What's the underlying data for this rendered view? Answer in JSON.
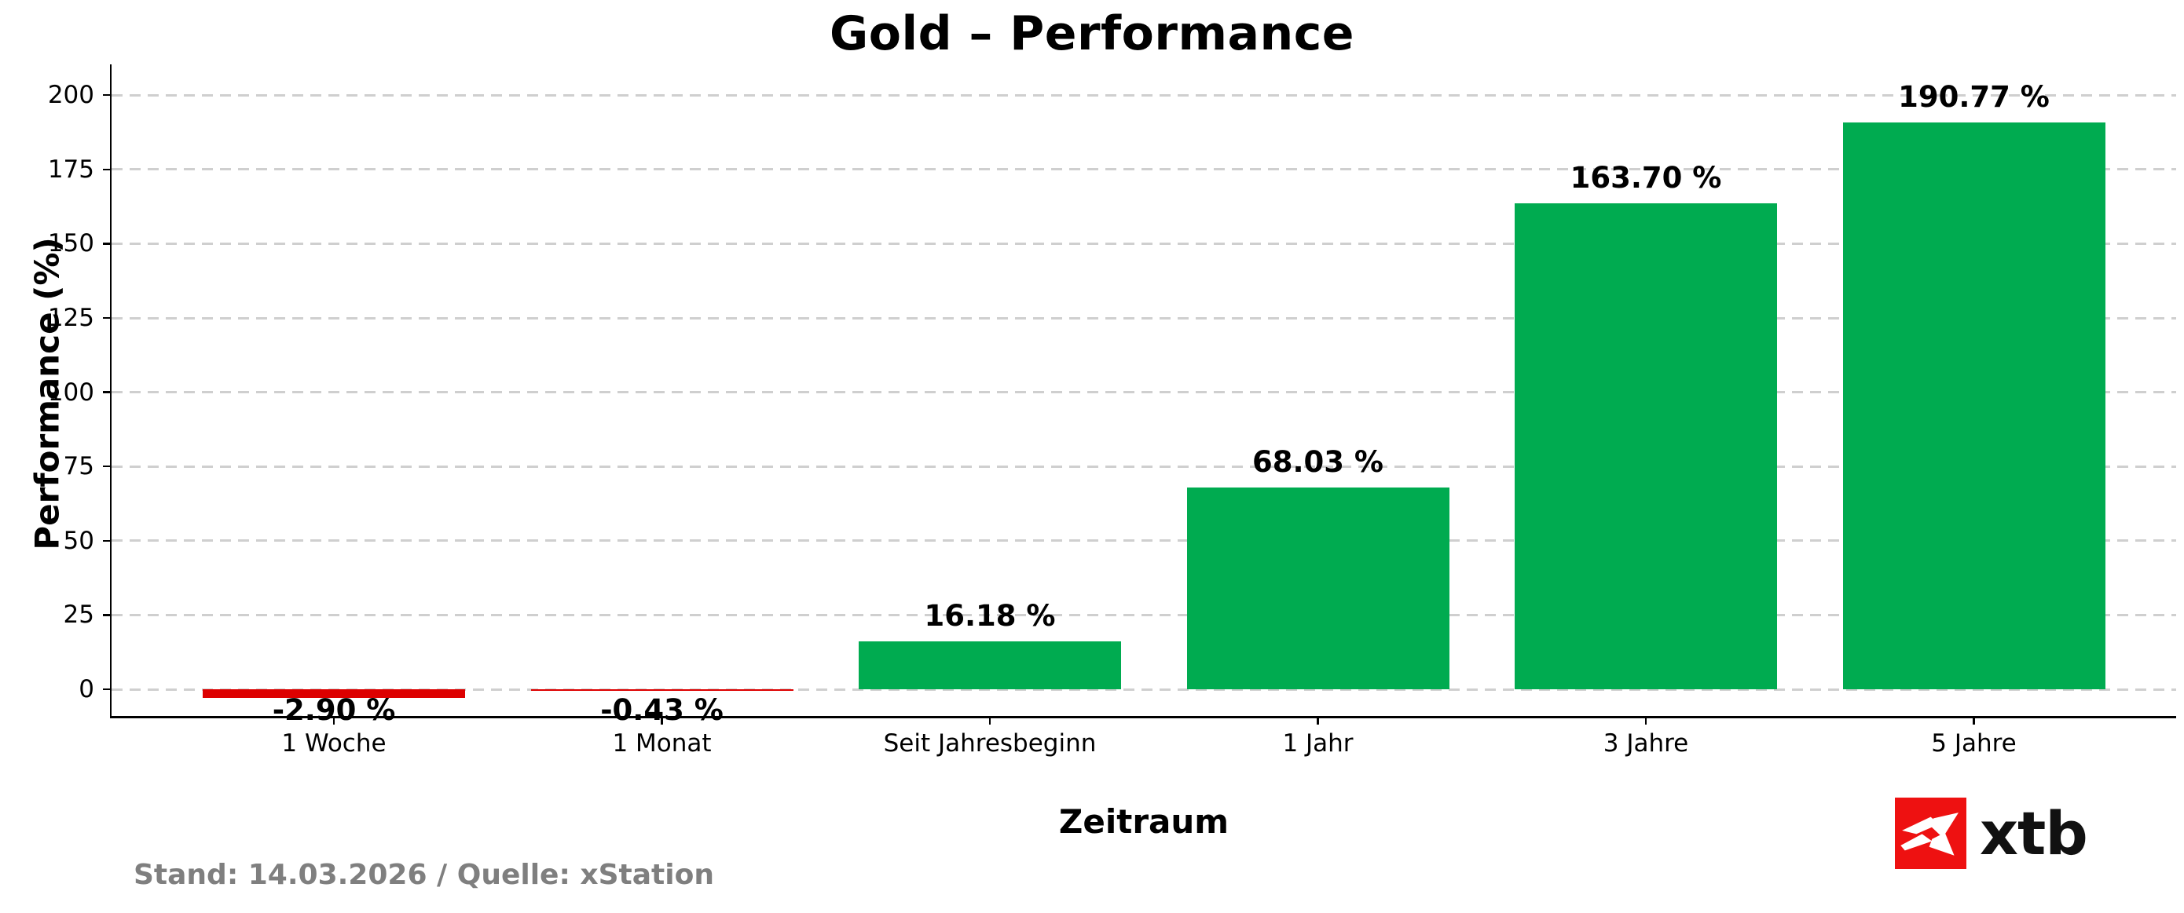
{
  "chart_data": {
    "type": "bar",
    "title": "Gold – Performance",
    "xlabel": "Zeitraum",
    "ylabel": "Performance (%)",
    "categories": [
      "1 Woche",
      "1 Monat",
      "Seit Jahresbeginn",
      "1 Jahr",
      "3 Jahre",
      "5 Jahre"
    ],
    "values": [
      -2.9,
      -0.43,
      16.18,
      68.03,
      163.7,
      190.77
    ],
    "value_labels": [
      "-2.90 %",
      "-0.43 %",
      "16.18 %",
      "68.03 %",
      "163.70 %",
      "190.77 %"
    ],
    "bar_colors": [
      "#dd0000",
      "#dd0000",
      "#00ab50",
      "#00ab50",
      "#00ab50",
      "#00ab50"
    ],
    "yticks": [
      0,
      25,
      50,
      75,
      100,
      125,
      150,
      175,
      200
    ],
    "ylim": [
      -9,
      210
    ],
    "grid": "horizontal-dashed",
    "legend": "none",
    "positive_color": "#00ab50",
    "negative_color": "#dd0000"
  },
  "footer": {
    "note": "Stand: 14.03.2026 / Quelle: xStation"
  },
  "logo": {
    "text": "xtb",
    "square_color": "#ee1111"
  }
}
